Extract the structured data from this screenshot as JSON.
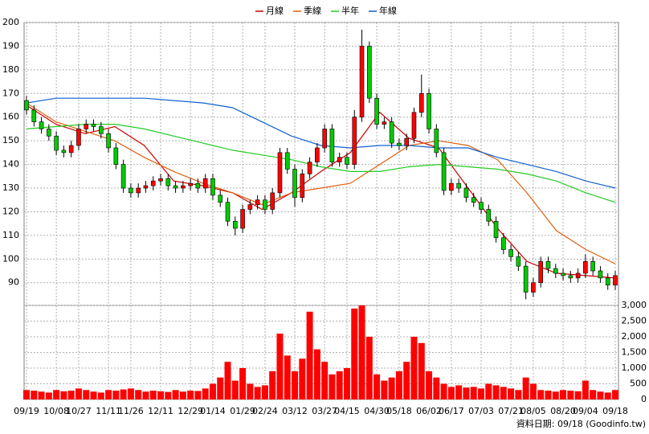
{
  "chart_data": {
    "type": "candlestick",
    "categories": [
      "09/19",
      null,
      null,
      null,
      "10/08",
      null,
      null,
      "10/27",
      null,
      null,
      null,
      "11/11",
      null,
      null,
      "11/26",
      null,
      null,
      null,
      "12/11",
      null,
      null,
      null,
      "12/29",
      null,
      null,
      "01/14",
      null,
      null,
      null,
      "01/29",
      null,
      null,
      "02/24",
      null,
      null,
      null,
      "03/12",
      null,
      null,
      null,
      "03/27",
      null,
      null,
      "04/15",
      null,
      null,
      null,
      "04/30",
      null,
      null,
      "05/18",
      null,
      null,
      null,
      "06/02",
      null,
      null,
      "06/17",
      null,
      null,
      null,
      "07/03",
      null,
      null,
      null,
      "07/21",
      null,
      null,
      "08/05",
      null,
      null,
      null,
      "08/20",
      null,
      null,
      "09/04",
      null,
      null,
      null,
      "09/18"
    ],
    "open": [
      167,
      163,
      158,
      155,
      152,
      146,
      145,
      148,
      155,
      157,
      156,
      153,
      147,
      140,
      130,
      128,
      130,
      131,
      133,
      134,
      131,
      130,
      131,
      132,
      130,
      134,
      127,
      124,
      116,
      113,
      121,
      123,
      125,
      121,
      128,
      145,
      138,
      126,
      136,
      141,
      147,
      155,
      141,
      143,
      140,
      160,
      190,
      168,
      157,
      158,
      149,
      148,
      151,
      162,
      170,
      155,
      145,
      129,
      132,
      130,
      126,
      124,
      121,
      116,
      109,
      104,
      101,
      97,
      86,
      90,
      99,
      96,
      94,
      93,
      92,
      94,
      99,
      95,
      92,
      89
    ],
    "high": [
      169,
      165,
      160,
      157,
      154,
      148,
      150,
      157,
      159,
      159,
      158,
      155,
      149,
      142,
      132,
      132,
      133,
      135,
      136,
      136,
      133,
      133,
      134,
      134,
      136,
      136,
      129,
      126,
      118,
      123,
      125,
      127,
      127,
      130,
      147,
      147,
      140,
      138,
      143,
      149,
      157,
      157,
      145,
      145,
      163,
      197,
      192,
      170,
      160,
      160,
      151,
      153,
      164,
      178,
      172,
      157,
      147,
      134,
      134,
      132,
      128,
      126,
      123,
      118,
      111,
      106,
      103,
      99,
      92,
      101,
      101,
      98,
      96,
      95,
      96,
      102,
      101,
      97,
      94,
      95
    ],
    "low": [
      161,
      156,
      153,
      150,
      144,
      143,
      143,
      146,
      153,
      154,
      151,
      145,
      138,
      128,
      126,
      126,
      128,
      129,
      131,
      129,
      128,
      128,
      129,
      128,
      128,
      125,
      122,
      114,
      110,
      111,
      119,
      121,
      119,
      119,
      126,
      136,
      122,
      124,
      134,
      139,
      145,
      139,
      139,
      138,
      138,
      158,
      166,
      155,
      155,
      147,
      146,
      146,
      149,
      160,
      153,
      143,
      127,
      127,
      128,
      124,
      122,
      119,
      114,
      107,
      102,
      99,
      95,
      83,
      84,
      88,
      94,
      92,
      91,
      90,
      90,
      92,
      93,
      90,
      87,
      87
    ],
    "close": [
      163,
      158,
      155,
      152,
      146,
      145,
      148,
      155,
      157,
      156,
      153,
      147,
      140,
      130,
      128,
      130,
      131,
      133,
      134,
      131,
      130,
      131,
      132,
      130,
      134,
      127,
      124,
      116,
      113,
      121,
      123,
      125,
      121,
      128,
      145,
      138,
      126,
      136,
      141,
      147,
      155,
      141,
      143,
      140,
      160,
      190,
      168,
      157,
      158,
      149,
      148,
      151,
      162,
      170,
      155,
      145,
      129,
      132,
      130,
      126,
      124,
      121,
      116,
      109,
      104,
      101,
      97,
      86,
      90,
      99,
      96,
      94,
      93,
      92,
      94,
      99,
      95,
      92,
      89,
      93
    ],
    "up_color": "#ff0000",
    "down_color": "#00cc00",
    "ylim": [
      80.4,
      200
    ],
    "yticks": [
      90,
      100,
      110,
      120,
      130,
      140,
      150,
      160,
      170,
      180,
      190,
      200
    ],
    "grid": true,
    "ma_series": [
      {
        "name": "月線",
        "color": "#cc0000",
        "values": [
          165,
          157,
          153,
          156,
          148,
          133,
          131,
          128,
          121,
          128,
          137,
          145,
          162,
          151,
          147,
          130,
          113,
          99,
          94,
          93,
          92
        ]
      },
      {
        "name": "季線",
        "color": "#e06010",
        "values": [
          166,
          158,
          154,
          150,
          143,
          137,
          132,
          128,
          123,
          128,
          130,
          132,
          140,
          148,
          150,
          148,
          142,
          128,
          112,
          104,
          98
        ]
      },
      {
        "name": "半年",
        "color": "#22cc22",
        "values": [
          155,
          156,
          157,
          157,
          155,
          152,
          149,
          146,
          144,
          142,
          139,
          137,
          137,
          139,
          140,
          139,
          138,
          136,
          133,
          128,
          124
        ]
      },
      {
        "name": "年線",
        "color": "#1060d0",
        "values": [
          166,
          168,
          168,
          168,
          168,
          167,
          166,
          164,
          158,
          152,
          148,
          147,
          148,
          148,
          147,
          147,
          143,
          140,
          137,
          133,
          130
        ]
      }
    ],
    "volume": {
      "color": "#ff0000",
      "values": [
        300,
        280,
        250,
        220,
        300,
        260,
        280,
        350,
        300,
        250,
        220,
        300,
        280,
        320,
        350,
        300,
        250,
        280,
        260,
        240,
        300,
        250,
        280,
        270,
        350,
        500,
        700,
        1200,
        600,
        1000,
        500,
        400,
        450,
        900,
        2100,
        1400,
        900,
        1300,
        2800,
        1600,
        1200,
        800,
        900,
        1000,
        2900,
        3000,
        2000,
        800,
        600,
        700,
        900,
        1200,
        2000,
        1800,
        900,
        700,
        500,
        400,
        450,
        380,
        400,
        350,
        500,
        450,
        400,
        350,
        300,
        700,
        500,
        300,
        280,
        250,
        300,
        280,
        260,
        600,
        300,
        250,
        220,
        300
      ],
      "y2lim": [
        0,
        3000
      ],
      "y2ticks": [
        0,
        500,
        {
          "value": 1000,
          "label": "1,000"
        },
        {
          "value": 1500,
          "label": "1,500"
        },
        {
          "value": 2000,
          "label": "2,000"
        },
        {
          "value": 2500,
          "label": "2,500"
        },
        {
          "value": 3000,
          "label": "3,000"
        }
      ]
    },
    "note": "資料日期: 09/18 (Goodinfo.tw)"
  }
}
